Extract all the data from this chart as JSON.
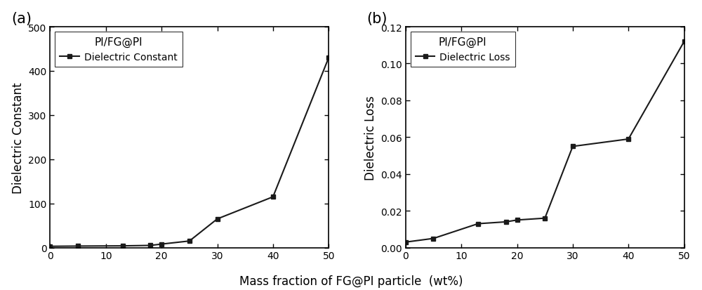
{
  "x": [
    0,
    5,
    13,
    18,
    20,
    25,
    30,
    40,
    50
  ],
  "dielectric_constant": [
    3,
    3.5,
    4,
    5,
    8,
    15,
    65,
    115,
    430
  ],
  "dielectric_loss": [
    0.003,
    0.005,
    0.013,
    0.014,
    0.015,
    0.016,
    0.055,
    0.059,
    0.112
  ],
  "label_a": "(a)",
  "label_b": "(b)",
  "legend_title_a": "PI/FG@PI",
  "legend_title_b": "PI/FG@PI",
  "legend_label_a": "Dielectric Constant",
  "legend_label_b": "Dielectric Loss",
  "ylabel_a": "Dielectric Constant",
  "ylabel_b": "Dielectric Loss",
  "xlabel": "Mass fraction of FG@PI particle  (wt%)",
  "xlim": [
    0,
    50
  ],
  "ylim_a": [
    0,
    500
  ],
  "ylim_b": [
    0.0,
    0.12
  ],
  "yticks_a": [
    0,
    100,
    200,
    300,
    400,
    500
  ],
  "yticks_b": [
    0.0,
    0.02,
    0.04,
    0.06,
    0.08,
    0.1,
    0.12
  ],
  "xticks": [
    0,
    10,
    20,
    30,
    40,
    50
  ],
  "line_color": "#1a1a1a",
  "marker": "s",
  "marker_size": 5,
  "bg_color": "#ffffff",
  "fontsize_label": 12,
  "fontsize_tick": 10,
  "fontsize_annotation": 15,
  "fontsize_legend_title": 11,
  "fontsize_legend": 10
}
